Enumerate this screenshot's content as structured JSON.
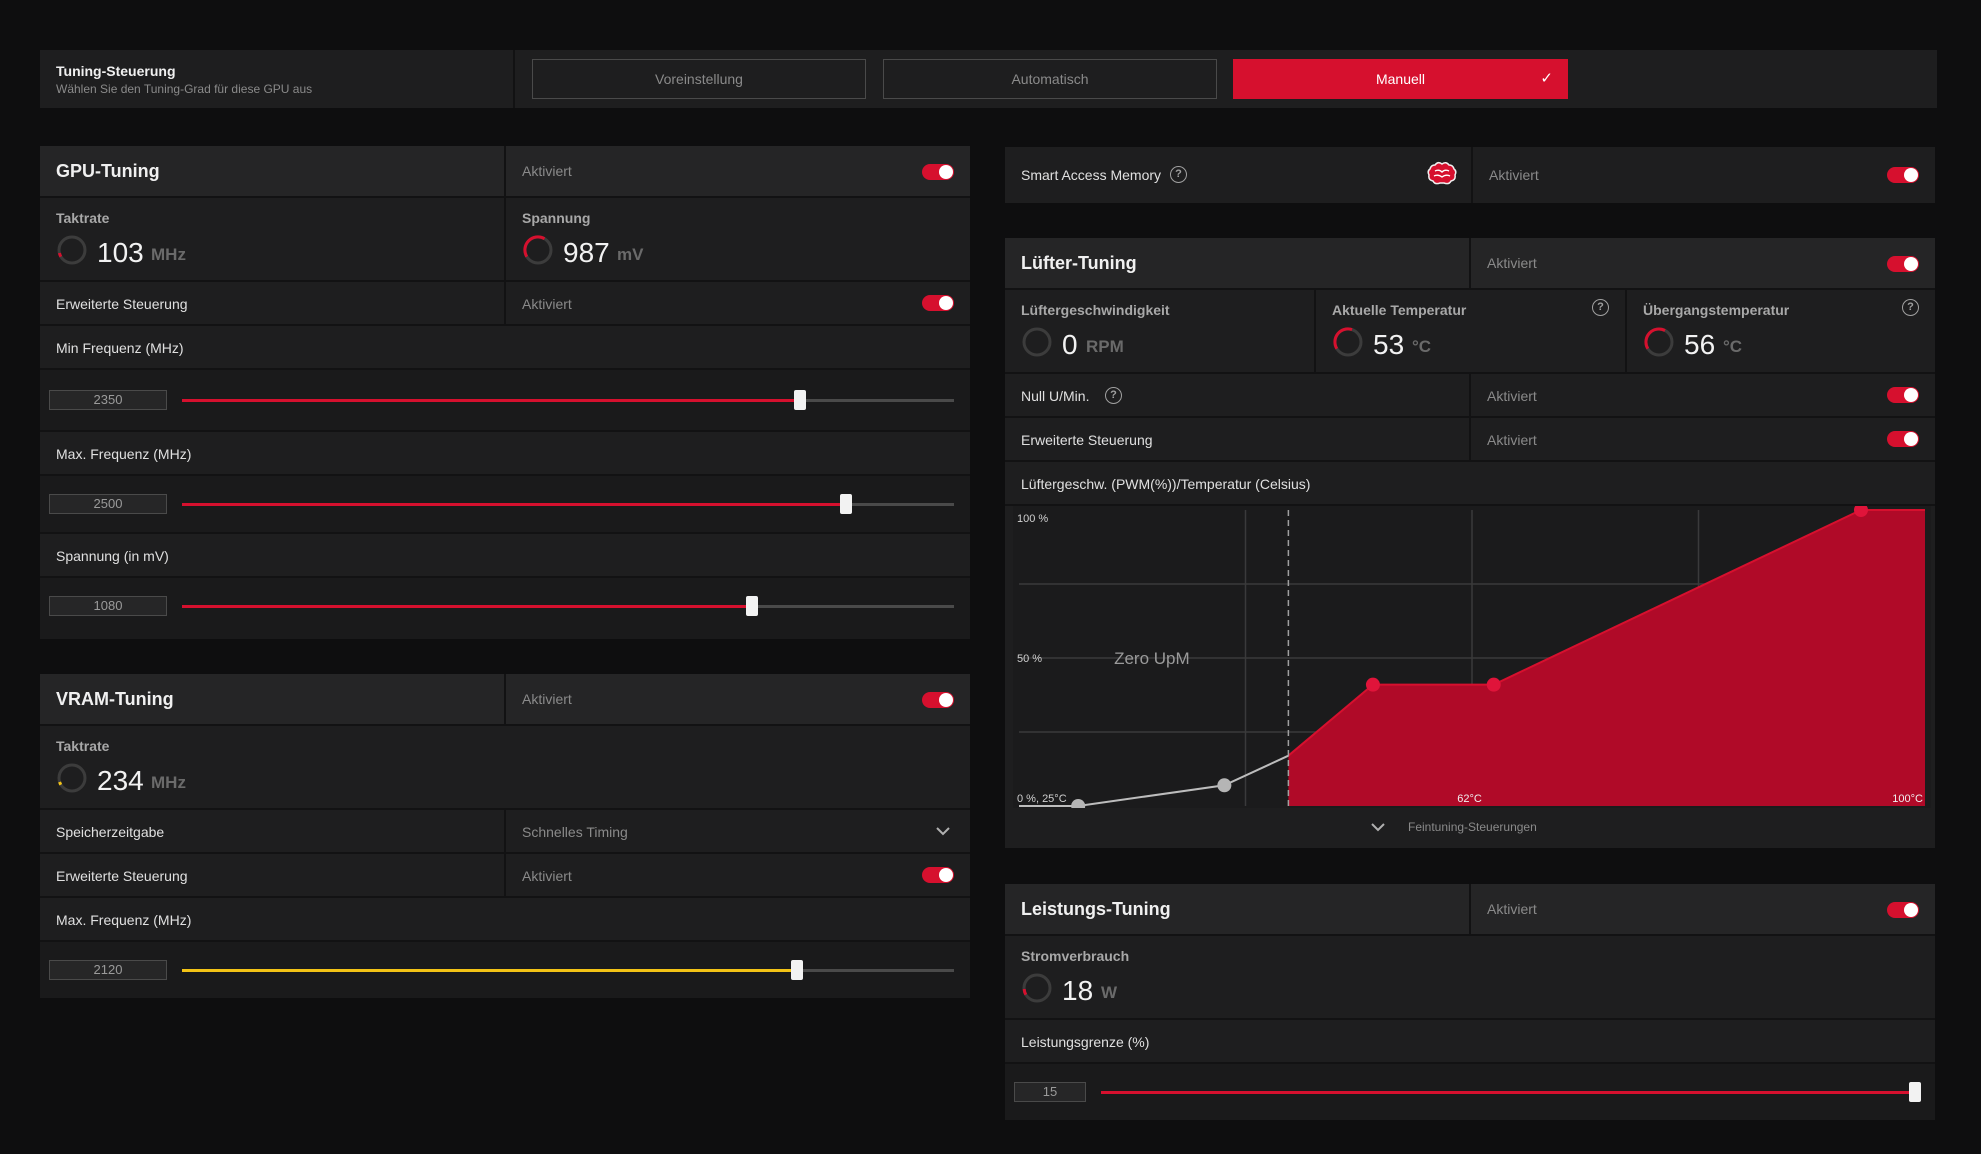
{
  "tuning_control": {
    "title": "Tuning-Steuerung",
    "subtitle": "Wählen Sie den Tuning-Grad für diese GPU aus",
    "options": [
      "Voreinstellung",
      "Automatisch",
      "Manuell"
    ],
    "selected": "Manuell"
  },
  "gpu_tuning": {
    "title": "GPU-Tuning",
    "status": "Aktiviert",
    "enabled": true,
    "clock": {
      "label": "Taktrate",
      "value": "103",
      "unit": "MHz"
    },
    "voltage": {
      "label": "Spannung",
      "value": "987",
      "unit": "mV"
    },
    "advanced": {
      "label": "Erweiterte Steuerung",
      "status": "Aktiviert",
      "enabled": true
    },
    "min_freq": {
      "label": "Min Frequenz (MHz)",
      "value": "2350",
      "fraction": 0.8
    },
    "max_freq": {
      "label": "Max. Frequenz (MHz)",
      "value": "2500",
      "fraction": 0.86
    },
    "voltage_slider": {
      "label": "Spannung (in mV)",
      "value": "1080",
      "fraction": 0.738
    }
  },
  "vram_tuning": {
    "title": "VRAM-Tuning",
    "status": "Aktiviert",
    "enabled": true,
    "clock": {
      "label": "Taktrate",
      "value": "234",
      "unit": "MHz"
    },
    "memory_timing": {
      "label": "Speicherzeitgabe",
      "value": "Schnelles Timing"
    },
    "advanced": {
      "label": "Erweiterte Steuerung",
      "status": "Aktiviert",
      "enabled": true
    },
    "max_freq": {
      "label": "Max. Frequenz (MHz)",
      "value": "2120",
      "fraction": 0.796
    }
  },
  "smart_access_memory": {
    "label": "Smart Access Memory",
    "help": "?",
    "status": "Aktiviert",
    "enabled": true
  },
  "fan_tuning": {
    "title": "Lüfter-Tuning",
    "status": "Aktiviert",
    "enabled": true,
    "fan_speed": {
      "label": "Lüftergeschwindigkeit",
      "value": "0",
      "unit": "RPM"
    },
    "current_temp": {
      "label": "Aktuelle Temperatur",
      "value": "53",
      "unit": "°C",
      "help": "?"
    },
    "junction_temp": {
      "label": "Übergangstemperatur",
      "value": "56",
      "unit": "°C",
      "help": "?"
    },
    "zero_rpm": {
      "label": "Null U/Min.",
      "help": "?",
      "status": "Aktiviert",
      "enabled": true
    },
    "advanced": {
      "label": "Erweiterte Steuerung",
      "status": "Aktiviert",
      "enabled": true
    },
    "curve_title": "Lüftergeschw. (PWM(%))/Temperatur (Celsius)",
    "fine_tuning": "Feintuning-Steuerungen"
  },
  "chart_data": {
    "type": "line",
    "title": "Lüftergeschw. (PWM(%))/Temperatur (Celsius)",
    "y_tick_labels": [
      "100 %",
      "50 %",
      "0 %, 25°C"
    ],
    "x_tick_labels": [
      "62°C",
      "100°C"
    ],
    "annotation": "Zero UpM",
    "xlim": [
      25,
      100
    ],
    "ylim": [
      0,
      100
    ],
    "zero_rpm_threshold": 47.3,
    "curve": [
      {
        "x": 25,
        "y": 0
      },
      {
        "x": 29.9,
        "y": 0
      },
      {
        "x": 42,
        "y": 7
      },
      {
        "x": 47.3,
        "y": 17
      },
      {
        "x": 54.3,
        "y": 41
      },
      {
        "x": 64.3,
        "y": 41
      },
      {
        "x": 94.7,
        "y": 100
      },
      {
        "x": 100,
        "y": 100
      }
    ],
    "markers": [
      {
        "x": 29.9,
        "y": 0,
        "active": false
      },
      {
        "x": 42,
        "y": 7,
        "active": false
      },
      {
        "x": 54.3,
        "y": 41,
        "active": true
      },
      {
        "x": 64.3,
        "y": 41,
        "active": true
      },
      {
        "x": 94.7,
        "y": 100,
        "active": true
      }
    ]
  },
  "power_tuning": {
    "title": "Leistungs-Tuning",
    "status": "Aktiviert",
    "enabled": true,
    "power": {
      "label": "Stromverbrauch",
      "value": "18",
      "unit": "W"
    },
    "limit": {
      "label": "Leistungsgrenze (%)",
      "value": "15",
      "fraction": 1.0
    }
  },
  "colors": {
    "accent": "#d6102e",
    "vram_accent": "#f3c316",
    "panel": "#1e1e1f",
    "header": "#252526"
  }
}
